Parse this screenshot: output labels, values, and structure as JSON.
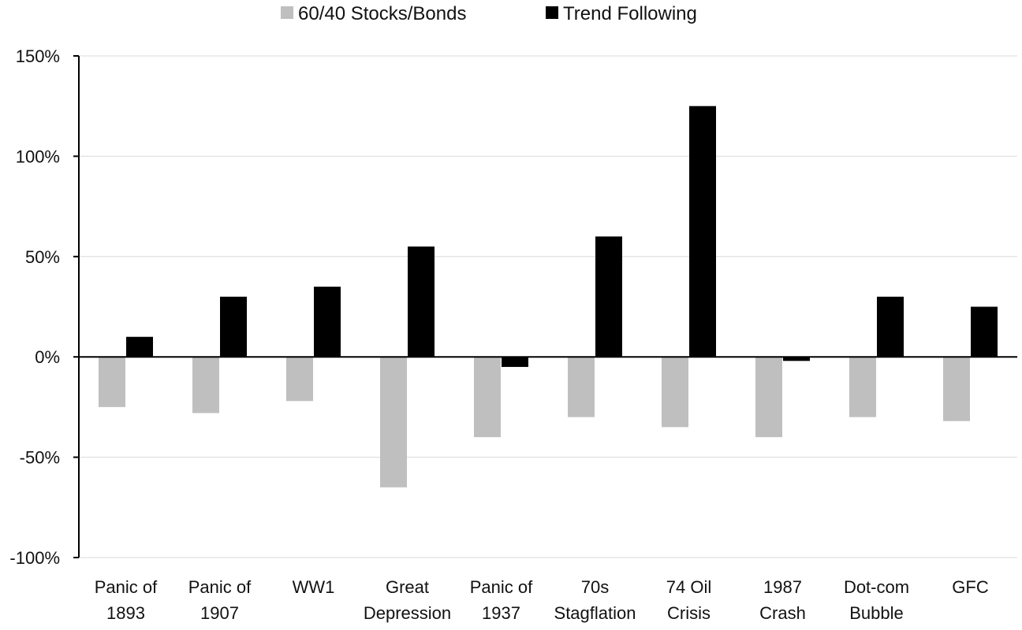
{
  "chart_data": {
    "type": "bar",
    "title": "",
    "xlabel": "",
    "ylabel": "",
    "categories": [
      [
        "Panic of",
        "1893"
      ],
      [
        "Panic of",
        "1907"
      ],
      [
        "WW1"
      ],
      [
        "Great",
        "Depression"
      ],
      [
        "Panic of",
        "1937"
      ],
      [
        "70s",
        "Stagflation"
      ],
      [
        "74 Oil",
        "Crisis"
      ],
      [
        "1987",
        "Crash"
      ],
      [
        "Dot-com",
        "Bubble"
      ],
      [
        "GFC"
      ]
    ],
    "series": [
      {
        "name": "60/40 Stocks/Bonds",
        "color": "#bfbfbf",
        "values": [
          -25,
          -28,
          -22,
          -65,
          -40,
          -30,
          -35,
          -40,
          -30,
          -32
        ]
      },
      {
        "name": "Trend Following",
        "color": "#000000",
        "values": [
          10,
          30,
          35,
          55,
          -5,
          60,
          125,
          -2,
          30,
          25
        ]
      }
    ],
    "ylim": [
      -100,
      150
    ],
    "yticks": [
      150,
      100,
      50,
      0,
      -50,
      -100
    ],
    "ytick_labels": [
      "150%",
      "100%",
      "50%",
      "0%",
      "-50%",
      "-100%"
    ],
    "grid": true,
    "legend_position": "top-center"
  }
}
